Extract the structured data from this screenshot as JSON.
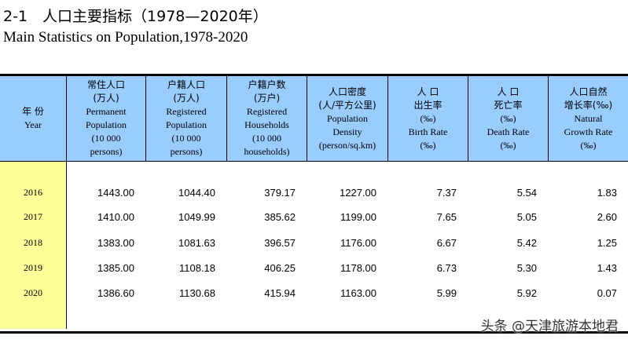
{
  "title_cn": "2-1　人口主要指标（1978—2020年）",
  "title_en": "Main Statistics on Population,1978-2020",
  "headers": [
    [
      "年 份",
      "Year"
    ],
    [
      "常住人口",
      "(万人)",
      "Permanent",
      "Population",
      "(10 000",
      "persons)"
    ],
    [
      "户籍人口",
      "(万人)",
      "Registered",
      "Population",
      "(10 000",
      "persons)"
    ],
    [
      "户籍户数",
      "(万户)",
      "Registered",
      "Households",
      "(10 000",
      "households)"
    ],
    [
      "人口密度",
      "(人/平方公里)",
      "Population",
      "Density",
      "(person/sq.km)"
    ],
    [
      "人 口",
      "出生率",
      "(‰)",
      "Birth Rate",
      "(‰)"
    ],
    [
      "人 口",
      "死亡率",
      "(‰)",
      "Death Rate",
      "(‰)"
    ],
    [
      "人口自然",
      "增长率(‰)",
      "Natural",
      "Growth Rate",
      "(‰)"
    ]
  ],
  "rows": [
    [
      "2016",
      "1443.00",
      "1044.40",
      "379.17",
      "1227.00",
      "7.37",
      "5.54",
      "1.83"
    ],
    [
      "2017",
      "1410.00",
      "1049.99",
      "385.62",
      "1199.00",
      "7.65",
      "5.05",
      "2.60"
    ],
    [
      "2018",
      "1383.00",
      "1081.63",
      "396.57",
      "1176.00",
      "6.67",
      "5.42",
      "1.25"
    ],
    [
      "2019",
      "1385.00",
      "1108.18",
      "406.25",
      "1178.00",
      "6.73",
      "5.30",
      "1.43"
    ],
    [
      "2020",
      "1386.60",
      "1130.68",
      "415.94",
      "1163.00",
      "5.99",
      "5.92",
      "0.07"
    ]
  ],
  "watermark": "头条 @天津旅游本地君",
  "colors": {
    "header_bg": "#99ccff",
    "year_bg": "#ffff99"
  }
}
